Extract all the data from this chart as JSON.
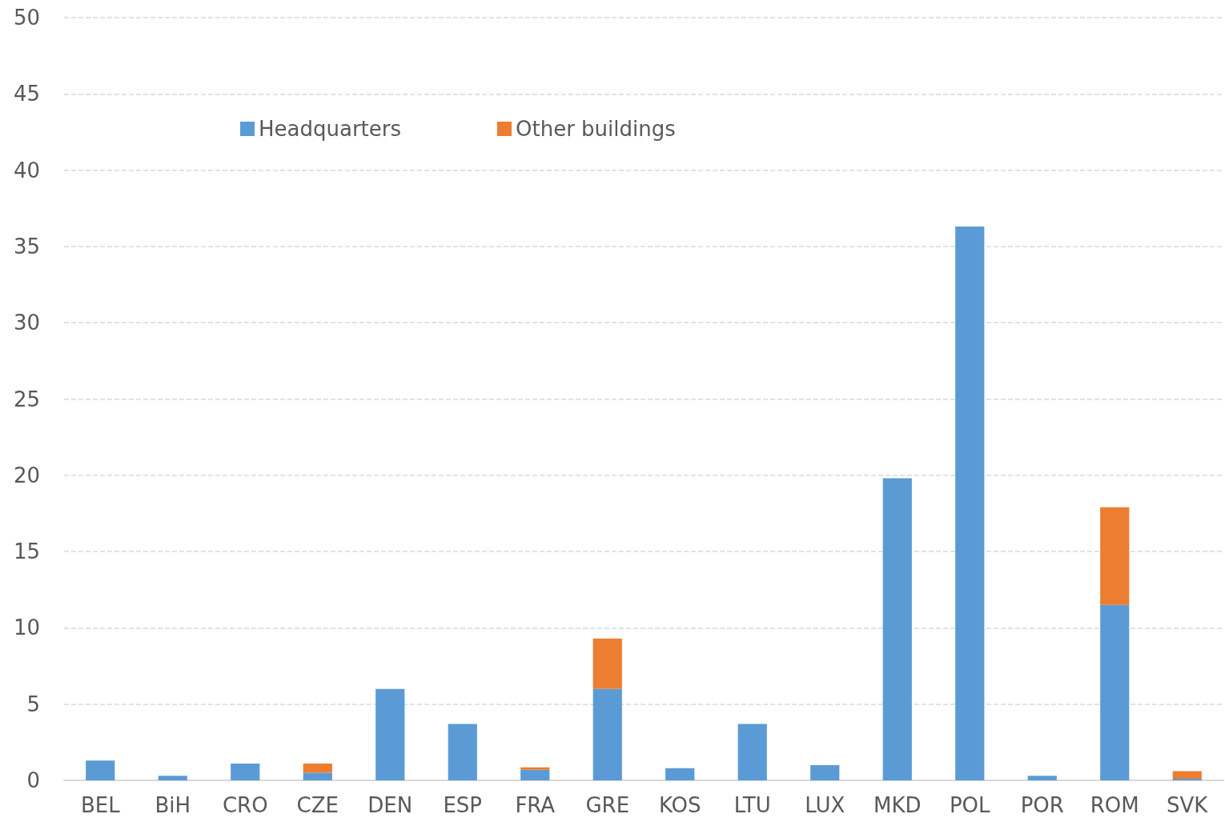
{
  "chart_data": {
    "type": "bar",
    "stacked": true,
    "categories": [
      "BEL",
      "BiH",
      "CRO",
      "CZE",
      "DEN",
      "ESP",
      "FRA",
      "GRE",
      "KOS",
      "LTU",
      "LUX",
      "MKD",
      "POL",
      "POR",
      "ROM",
      "SVK"
    ],
    "series": [
      {
        "name": "Headquarters",
        "color": "#5b9bd5",
        "values": [
          1.3,
          0.3,
          1.1,
          0.5,
          6.0,
          3.7,
          0.7,
          6.0,
          0.8,
          3.7,
          1.0,
          19.8,
          36.3,
          0.3,
          11.5,
          0.1
        ]
      },
      {
        "name": "Other buildings",
        "color": "#ed7d31",
        "values": [
          null,
          null,
          null,
          0.6,
          null,
          null,
          0.15,
          3.3,
          null,
          null,
          null,
          null,
          null,
          null,
          6.4,
          0.5
        ]
      }
    ],
    "ylim": [
      0,
      50
    ],
    "yticks": [
      0,
      5,
      10,
      15,
      20,
      25,
      30,
      35,
      40,
      45,
      50
    ],
    "grid": "y",
    "line_style": "dashed",
    "legend": "top left"
  }
}
